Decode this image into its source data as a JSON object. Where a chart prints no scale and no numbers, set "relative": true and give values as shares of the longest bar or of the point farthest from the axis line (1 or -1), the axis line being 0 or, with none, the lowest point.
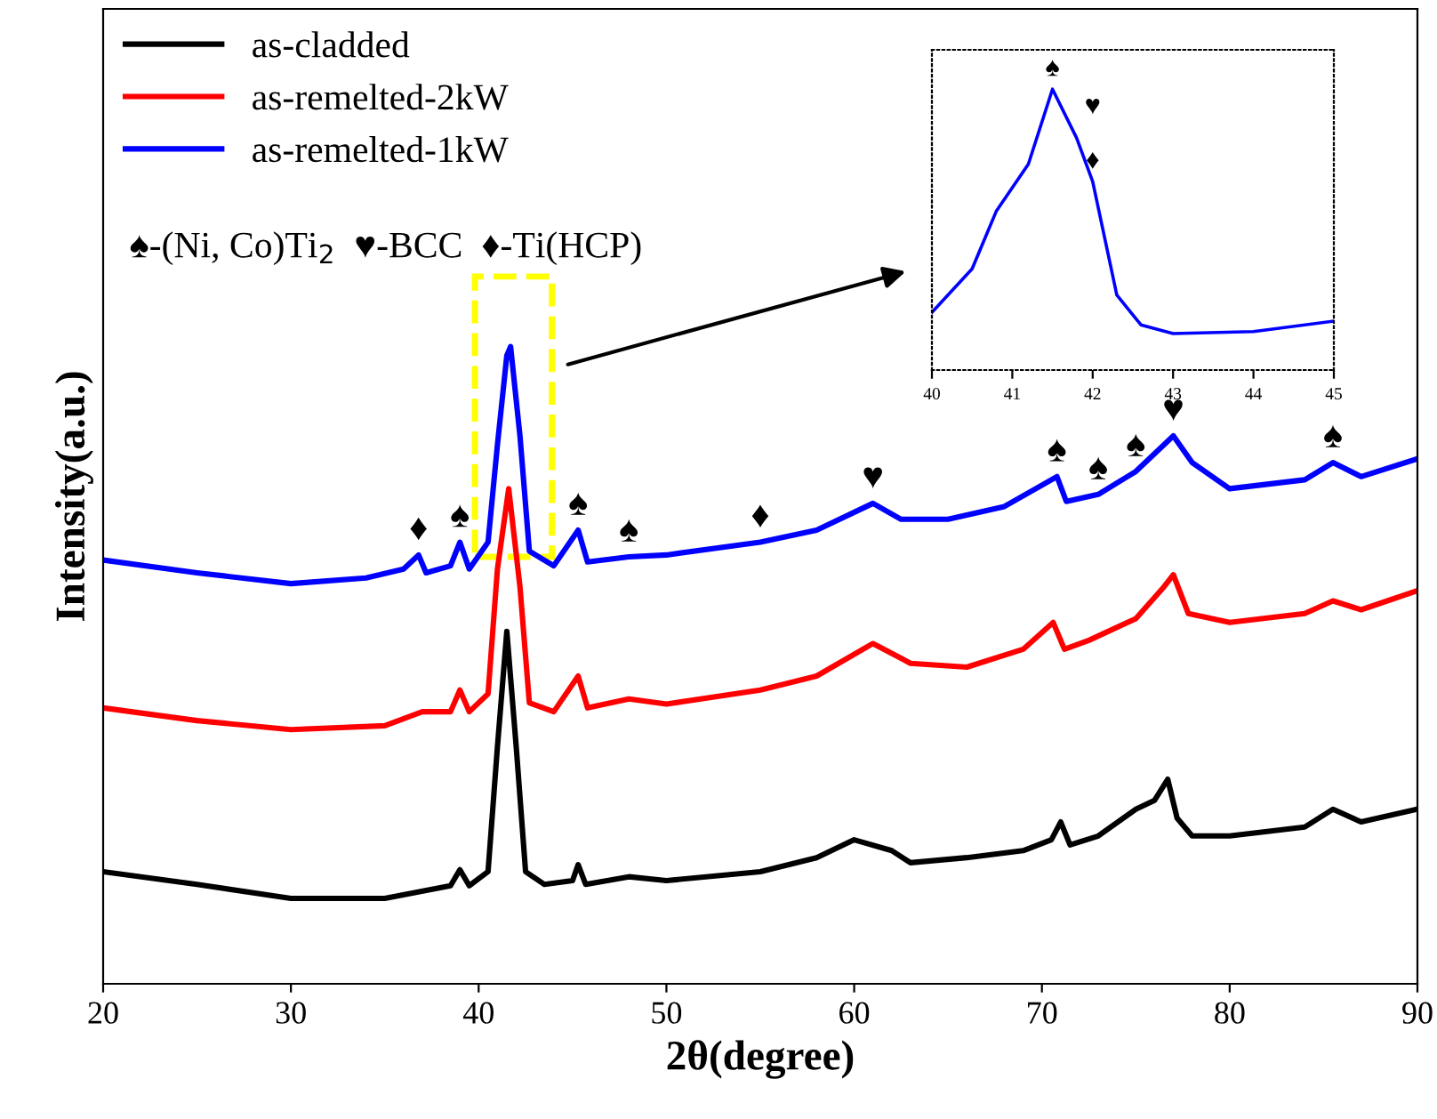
{
  "chart_data": [
    {
      "type": "line",
      "relative": true,
      "xlabel": "2θ(degree)",
      "ylabel": "Intensity(a.u.)",
      "xlim": [
        20,
        90
      ],
      "xticks": [
        20,
        30,
        40,
        50,
        60,
        70,
        80,
        90
      ],
      "legend": "top left",
      "grid": false,
      "series": [
        {
          "name": "as-cladded",
          "color": "#000000",
          "x": [
            20,
            25,
            30,
            35,
            38.5,
            39,
            39.5,
            40.5,
            41,
            41.5,
            42,
            42.5,
            43.5,
            45,
            45.3,
            45.7,
            48,
            50,
            55,
            58,
            60,
            62,
            63,
            66,
            69,
            70.5,
            71,
            71.5,
            73,
            75,
            76,
            76.7,
            77.2,
            78,
            80,
            84,
            85.5,
            87,
            90
          ],
          "values": [
            0.176,
            0.156,
            0.134,
            0.134,
            0.154,
            0.179,
            0.154,
            0.176,
            0.372,
            0.553,
            0.372,
            0.176,
            0.156,
            0.162,
            0.187,
            0.156,
            0.168,
            0.162,
            0.176,
            0.198,
            0.226,
            0.209,
            0.19,
            0.198,
            0.209,
            0.226,
            0.254,
            0.218,
            0.232,
            0.274,
            0.288,
            0.321,
            0.26,
            0.232,
            0.232,
            0.246,
            0.274,
            0.254,
            0.274
          ]
        },
        {
          "name": "as-remelted-2kW",
          "color": "#ff0000",
          "x": [
            20,
            25,
            30,
            35,
            37,
            38.5,
            39,
            39.5,
            40.5,
            41,
            41.6,
            42.2,
            42.7,
            44,
            45.3,
            45.8,
            48,
            50,
            55,
            58,
            61,
            63,
            66,
            69,
            70.6,
            71.2,
            72.5,
            75,
            76.5,
            77,
            77.8,
            80,
            84,
            85.5,
            87,
            90
          ],
          "values": [
            0.433,
            0.413,
            0.399,
            0.405,
            0.427,
            0.427,
            0.461,
            0.427,
            0.455,
            0.651,
            0.777,
            0.623,
            0.441,
            0.427,
            0.483,
            0.433,
            0.447,
            0.439,
            0.461,
            0.483,
            0.534,
            0.503,
            0.497,
            0.525,
            0.567,
            0.525,
            0.539,
            0.573,
            0.623,
            0.642,
            0.581,
            0.567,
            0.581,
            0.601,
            0.587,
            0.617
          ]
        },
        {
          "name": "as-remelted-1kW",
          "color": "#0000ff",
          "x": [
            20,
            25,
            30,
            34,
            36,
            36.8,
            37.2,
            38.5,
            39,
            39.5,
            40.5,
            41,
            41.5,
            41.7,
            42.2,
            42.7,
            44,
            45.3,
            45.8,
            48,
            50,
            55,
            58,
            61,
            62.5,
            65,
            68,
            70.8,
            71.3,
            73,
            75,
            77,
            78,
            80,
            84,
            85.5,
            87,
            90
          ],
          "values": [
            0.665,
            0.645,
            0.628,
            0.637,
            0.651,
            0.673,
            0.645,
            0.656,
            0.693,
            0.651,
            0.693,
            0.846,
            0.986,
            1.0,
            0.86,
            0.679,
            0.656,
            0.712,
            0.662,
            0.67,
            0.673,
            0.693,
            0.712,
            0.754,
            0.729,
            0.729,
            0.749,
            0.796,
            0.757,
            0.768,
            0.804,
            0.86,
            0.818,
            0.777,
            0.791,
            0.818,
            0.796,
            0.824
          ]
        }
      ],
      "annotations": [
        "♠-(Ni, Co)Ti$_{2}$  ♥-BCC  ♦-Ti(HCP)",
        {
          "text": "♦",
          "x": 36.8,
          "y": 0.673
        },
        {
          "text": "♠",
          "x": 39,
          "y": 0.693
        },
        {
          "text": "♠",
          "x": 45.3,
          "y": 0.712
        },
        {
          "text": "♠",
          "x": 48,
          "y": 0.67
        },
        {
          "text": "♦",
          "x": 55,
          "y": 0.693
        },
        {
          "text": "♥",
          "x": 61,
          "y": 0.754
        },
        {
          "text": "♠",
          "x": 70.8,
          "y": 0.796
        },
        {
          "text": "♠",
          "x": 73,
          "y": 0.768
        },
        {
          "text": "♠",
          "x": 75,
          "y": 0.804
        },
        {
          "text": "♥",
          "x": 77,
          "y": 0.86
        },
        {
          "text": "♠",
          "x": 85.5,
          "y": 0.818
        }
      ]
    },
    {
      "type": "line",
      "relative": true,
      "xlim": [
        40,
        45
      ],
      "xticks": [
        40,
        41,
        42,
        43,
        44,
        45
      ],
      "grid": false,
      "legend": false,
      "series": [
        {
          "color": "#0000ff",
          "x": [
            40,
            40.5,
            40.8,
            41.2,
            41.5,
            41.8,
            42,
            42.3,
            42.6,
            43,
            44,
            45
          ],
          "values": [
            0.205,
            0.36,
            0.565,
            0.733,
            1.0,
            0.826,
            0.671,
            0.267,
            0.161,
            0.13,
            0.137,
            0.174
          ]
        }
      ],
      "annotations": [
        {
          "text": "♠",
          "x": 41.5,
          "y": 1.0
        },
        {
          "text": "♥",
          "x": 42,
          "y": 0.671
        },
        {
          "text": "♦",
          "x": 42,
          "y": 0.671
        }
      ]
    }
  ]
}
